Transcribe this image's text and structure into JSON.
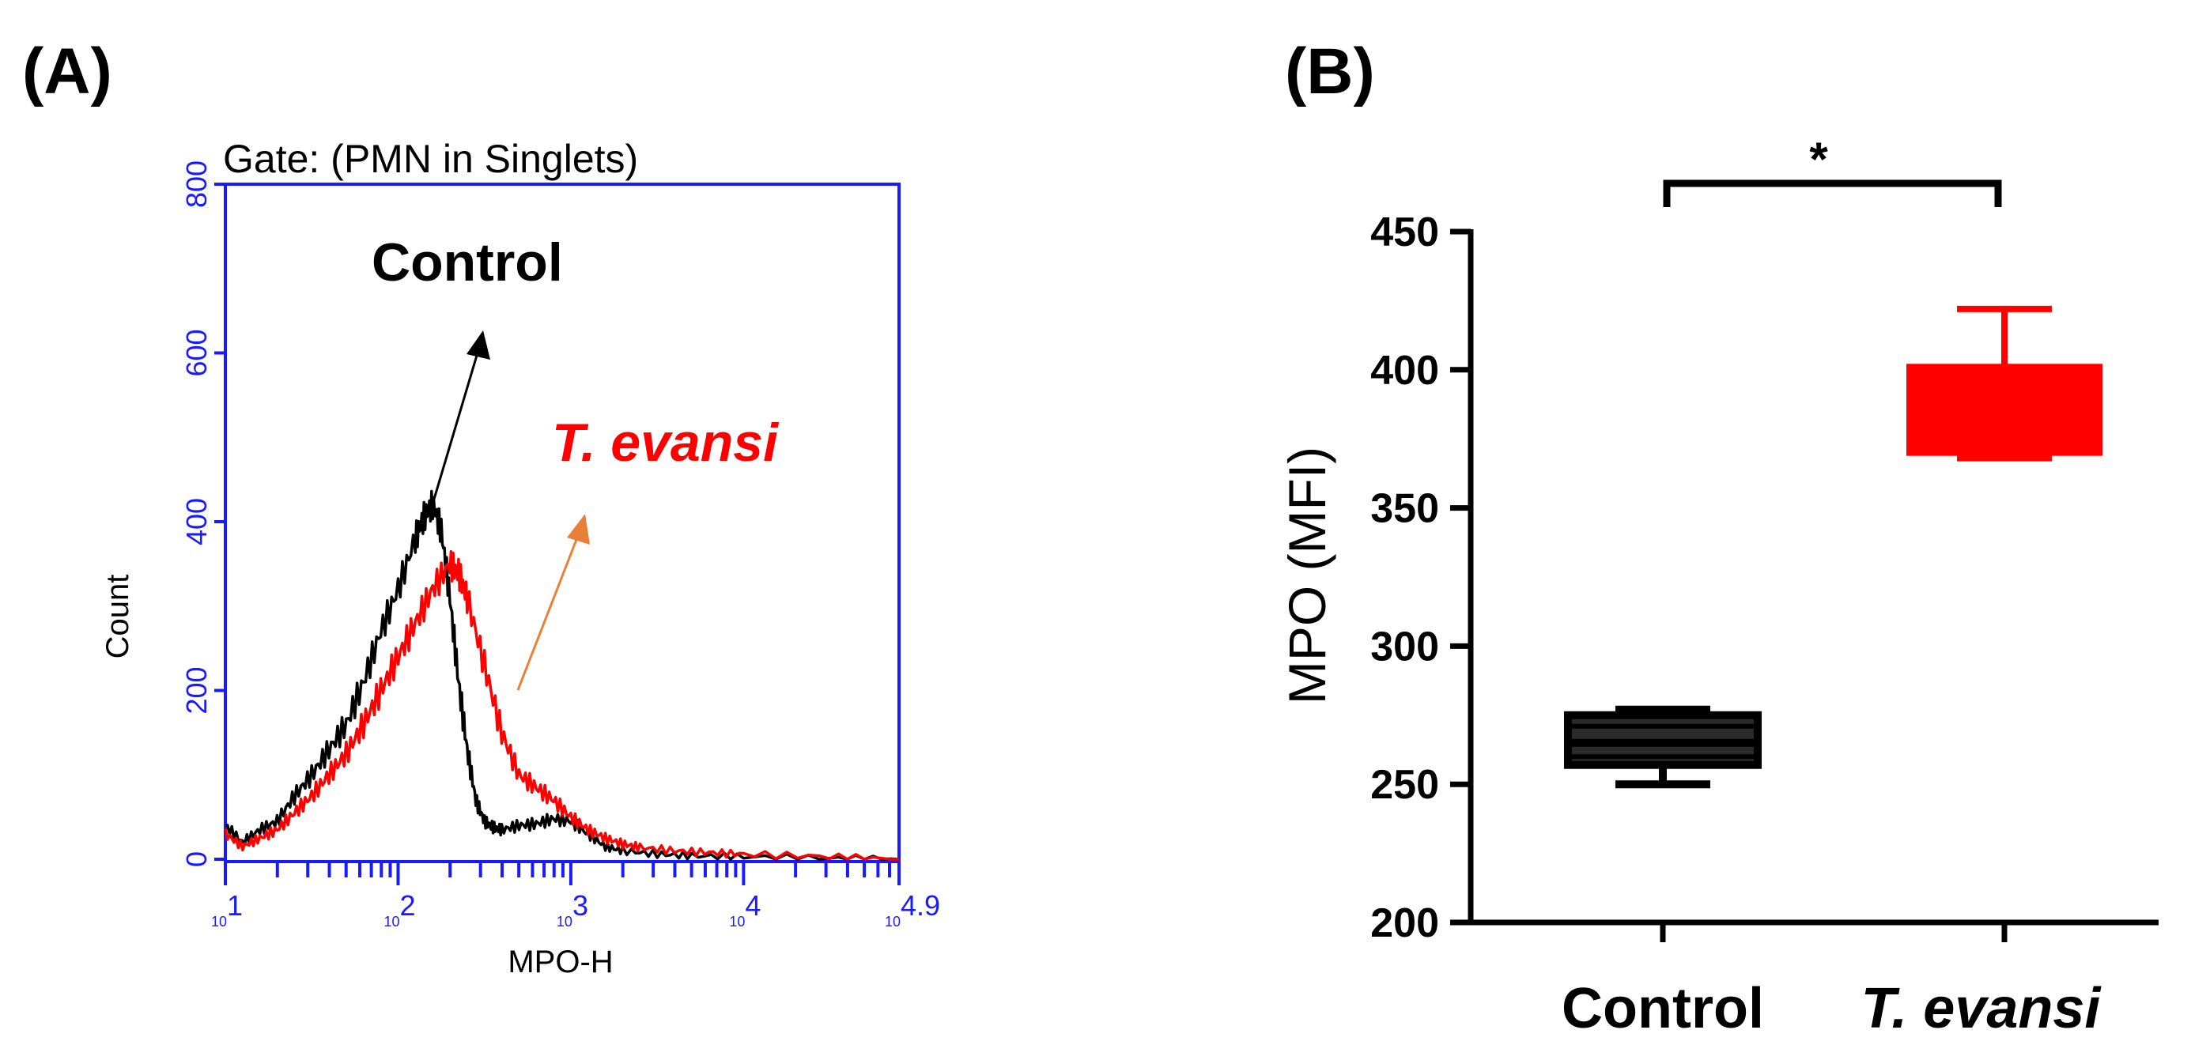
{
  "panels": {
    "a_label": "(A)",
    "b_label": "(B)"
  },
  "chart_data": [
    {
      "type": "line",
      "title": "Gate: (PMN in Singlets)",
      "xlabel": "MPO-H",
      "ylabel": "Count",
      "xscale": "log",
      "xlim": [
        1,
        4.9
      ],
      "ylim": [
        0,
        800
      ],
      "y_ticks": [
        0,
        200,
        400,
        600,
        800
      ],
      "x_ticks": [
        {
          "base": "10",
          "exp": "1",
          "value": 1
        },
        {
          "base": "10",
          "exp": "2",
          "value": 2
        },
        {
          "base": "10",
          "exp": "3",
          "value": 3
        },
        {
          "base": "10",
          "exp": "4",
          "value": 4
        },
        {
          "base": "10",
          "exp": "4.9",
          "value": 4.9
        }
      ],
      "series": [
        {
          "name": "Control",
          "color": "#000000",
          "x": [
            1.0,
            1.1,
            1.2,
            1.3,
            1.4,
            1.5,
            1.6,
            1.7,
            1.8,
            1.9,
            2.0,
            2.1,
            2.15,
            2.2,
            2.25,
            2.3,
            2.35,
            2.4,
            2.45,
            2.5,
            2.55,
            2.6,
            2.7,
            2.8,
            2.9,
            3.0,
            3.1,
            3.2,
            3.3,
            3.5,
            3.7,
            4.0,
            4.5,
            4.9
          ],
          "y": [
            40,
            20,
            35,
            45,
            75,
            100,
            130,
            160,
            210,
            270,
            320,
            380,
            405,
            420,
            390,
            310,
            210,
            130,
            70,
            45,
            38,
            35,
            40,
            42,
            48,
            45,
            30,
            15,
            10,
            6,
            4,
            3,
            1,
            0
          ]
        },
        {
          "name": "T. evansi",
          "color": "#ff0000",
          "x": [
            1.0,
            1.1,
            1.2,
            1.3,
            1.4,
            1.5,
            1.6,
            1.7,
            1.8,
            1.9,
            2.0,
            2.1,
            2.2,
            2.3,
            2.35,
            2.4,
            2.5,
            2.6,
            2.7,
            2.8,
            2.9,
            3.0,
            3.1,
            3.2,
            3.3,
            3.4,
            3.6,
            3.8,
            4.0,
            4.5,
            4.9
          ],
          "y": [
            30,
            15,
            25,
            35,
            55,
            75,
            100,
            125,
            160,
            200,
            240,
            280,
            320,
            350,
            340,
            310,
            230,
            150,
            100,
            85,
            70,
            50,
            35,
            25,
            18,
            14,
            10,
            8,
            6,
            3,
            0
          ]
        }
      ],
      "annotations": [
        {
          "text": "Control",
          "color": "#000000"
        },
        {
          "text": "T. evansi",
          "color": "#ff0000"
        }
      ]
    },
    {
      "type": "box",
      "ylabel": "MPO (MFI)",
      "ylim": [
        200,
        450
      ],
      "y_ticks": [
        200,
        250,
        300,
        350,
        400,
        450
      ],
      "categories": [
        "Control",
        "T. evansi"
      ],
      "series": [
        {
          "name": "Control",
          "color": "#000000",
          "min": 250,
          "q1": 257,
          "median": 265,
          "q3": 275,
          "max": 277
        },
        {
          "name": "T. evansi",
          "color": "#ff0000",
          "min": 368,
          "q1": 370,
          "median": 385,
          "q3": 401,
          "max": 422
        }
      ],
      "significance": "*"
    }
  ]
}
